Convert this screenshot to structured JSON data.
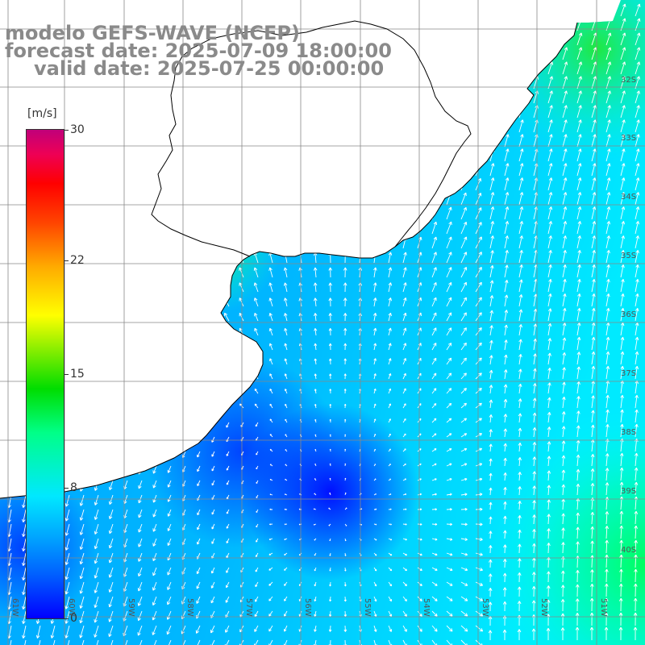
{
  "title": {
    "line1": "modelo GEFS-WAVE (NCEP)",
    "line2": "forecast date: 2025-07-09 18:00:00",
    "line3": "valid date: 2025-07-25 00:00:00"
  },
  "colorbar": {
    "unit": "[m/s]",
    "min": 0,
    "max": 30,
    "ticks": [
      {
        "label": "30",
        "value": 30
      },
      {
        "label": "22",
        "value": 22
      },
      {
        "label": "15",
        "value": 15
      },
      {
        "label": "8",
        "value": 8
      },
      {
        "label": "0",
        "value": 0
      }
    ]
  },
  "longitude_labels": [
    "61W",
    "60W",
    "59W",
    "58W",
    "57W",
    "56W",
    "55W",
    "54W",
    "53W",
    "52W",
    "51W"
  ],
  "latitude_labels": [
    "32S",
    "33S",
    "34S",
    "35S",
    "36S",
    "37S",
    "38S",
    "39S",
    "40S"
  ],
  "colors": {
    "grid": "#888888",
    "coast": "#000000",
    "land": "#ffffff",
    "arrow": "#ffffff",
    "title": "#8a8a8a"
  }
}
